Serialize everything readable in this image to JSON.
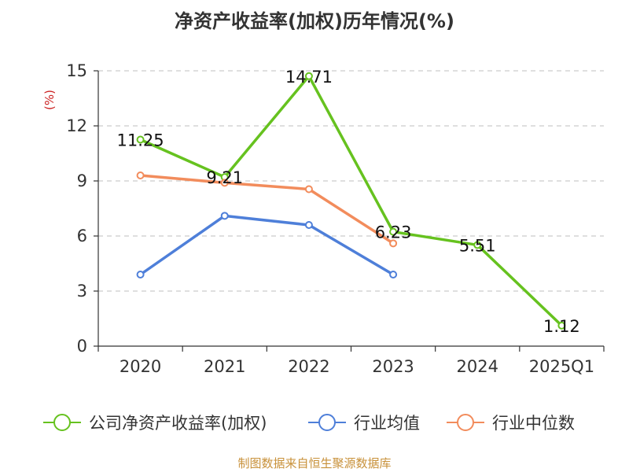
{
  "chart_data": {
    "type": "line",
    "title": "净资产收益率(加权)历年情况(%)",
    "ylabel": "(%)",
    "categories": [
      "2020",
      "2021",
      "2022",
      "2023",
      "2024",
      "2025Q1"
    ],
    "ylim": [
      0,
      15
    ],
    "yticks": [
      0,
      3,
      6,
      9,
      12,
      15
    ],
    "grid": true,
    "legend_position": "bottom",
    "series": [
      {
        "name": "公司净资产收益率(加权)",
        "color": "#66c21f",
        "values": [
          11.25,
          9.21,
          14.71,
          6.23,
          5.51,
          1.12
        ],
        "labels": [
          "11.25",
          "9.21",
          "14.71",
          "6.23",
          "5.51",
          "1.12"
        ]
      },
      {
        "name": "行业均值",
        "color": "#4e7fd9",
        "values": [
          3.9,
          7.1,
          6.6,
          3.9,
          null,
          null
        ]
      },
      {
        "name": "行业中位数",
        "color": "#f28c5c",
        "values": [
          9.3,
          8.9,
          8.55,
          5.6,
          null,
          null
        ]
      }
    ]
  },
  "colors": {
    "unit": "#cc2222",
    "source": "#c8913a",
    "axis": "#333333",
    "grid": "#cccccc"
  },
  "source": "制图数据来自恒生聚源数据库"
}
